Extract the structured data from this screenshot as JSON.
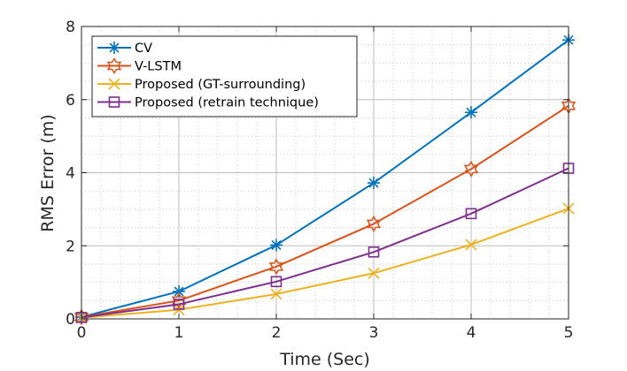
{
  "chart_data": {
    "type": "line",
    "title": "",
    "xlabel": "Time (Sec)",
    "ylabel": "RMS Error (m)",
    "xlim": [
      0,
      5
    ],
    "ylim": [
      0,
      8
    ],
    "xticks": [
      0,
      1,
      2,
      3,
      4,
      5
    ],
    "yticks": [
      0,
      2,
      4,
      6,
      8
    ],
    "grid": "major solid, minor dotted",
    "legend_position": "top-left",
    "x": [
      0,
      1,
      2,
      3,
      4,
      5
    ],
    "series": [
      {
        "name": "CV",
        "values": [
          0.05,
          0.75,
          2.02,
          3.72,
          5.65,
          7.63
        ],
        "color": "#0072BD",
        "marker": "asterisk"
      },
      {
        "name": "V-LSTM",
        "values": [
          0.05,
          0.5,
          1.43,
          2.6,
          4.1,
          5.83
        ],
        "color": "#D95319",
        "marker": "hexagram"
      },
      {
        "name": "Proposed (GT-surrounding)",
        "values": [
          0.03,
          0.25,
          0.68,
          1.25,
          2.03,
          3.02
        ],
        "color": "#EDB120",
        "marker": "x"
      },
      {
        "name": "Proposed (retrain technique)",
        "values": [
          0.04,
          0.4,
          1.02,
          1.83,
          2.88,
          4.12
        ],
        "color": "#7E2F8E",
        "marker": "square"
      }
    ]
  }
}
